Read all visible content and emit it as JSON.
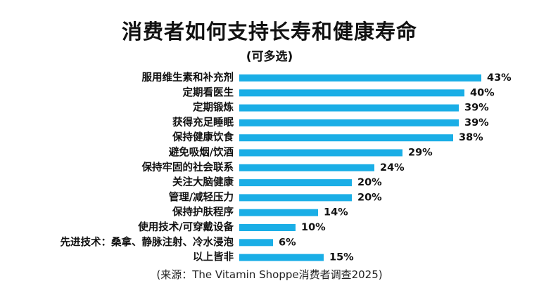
{
  "chart_data": {
    "type": "bar",
    "orientation": "horizontal",
    "title": "消费者如何支持长寿和健康寿命",
    "subtitle": "(可多选)",
    "categories": [
      "服用维生素和补充剂",
      "定期看医生",
      "定期锻炼",
      "获得充足睡眠",
      "保持健康饮食",
      "避免吸烟/饮酒",
      "保持牢固的社会联系",
      "关注大脑健康",
      "管理/减轻压力",
      "保持护肤程序",
      "使用技术/可穿戴设备",
      "先进技术：桑拿、静脉注射、冷水浸泡",
      "以上皆非"
    ],
    "values": [
      43,
      40,
      39,
      39,
      38,
      29,
      24,
      20,
      20,
      14,
      10,
      6,
      15
    ],
    "value_labels": [
      "43%",
      "40%",
      "39%",
      "39%",
      "38%",
      "29%",
      "24%",
      "20%",
      "20%",
      "14%",
      "10%",
      "6%",
      "15%"
    ],
    "unit": "%",
    "xlim": [
      0,
      43
    ],
    "bar_color": "#1AAEE6",
    "grid": false,
    "legend": "none",
    "source": "(来源：The Vitamin Shoppe消费者调查2025)"
  }
}
